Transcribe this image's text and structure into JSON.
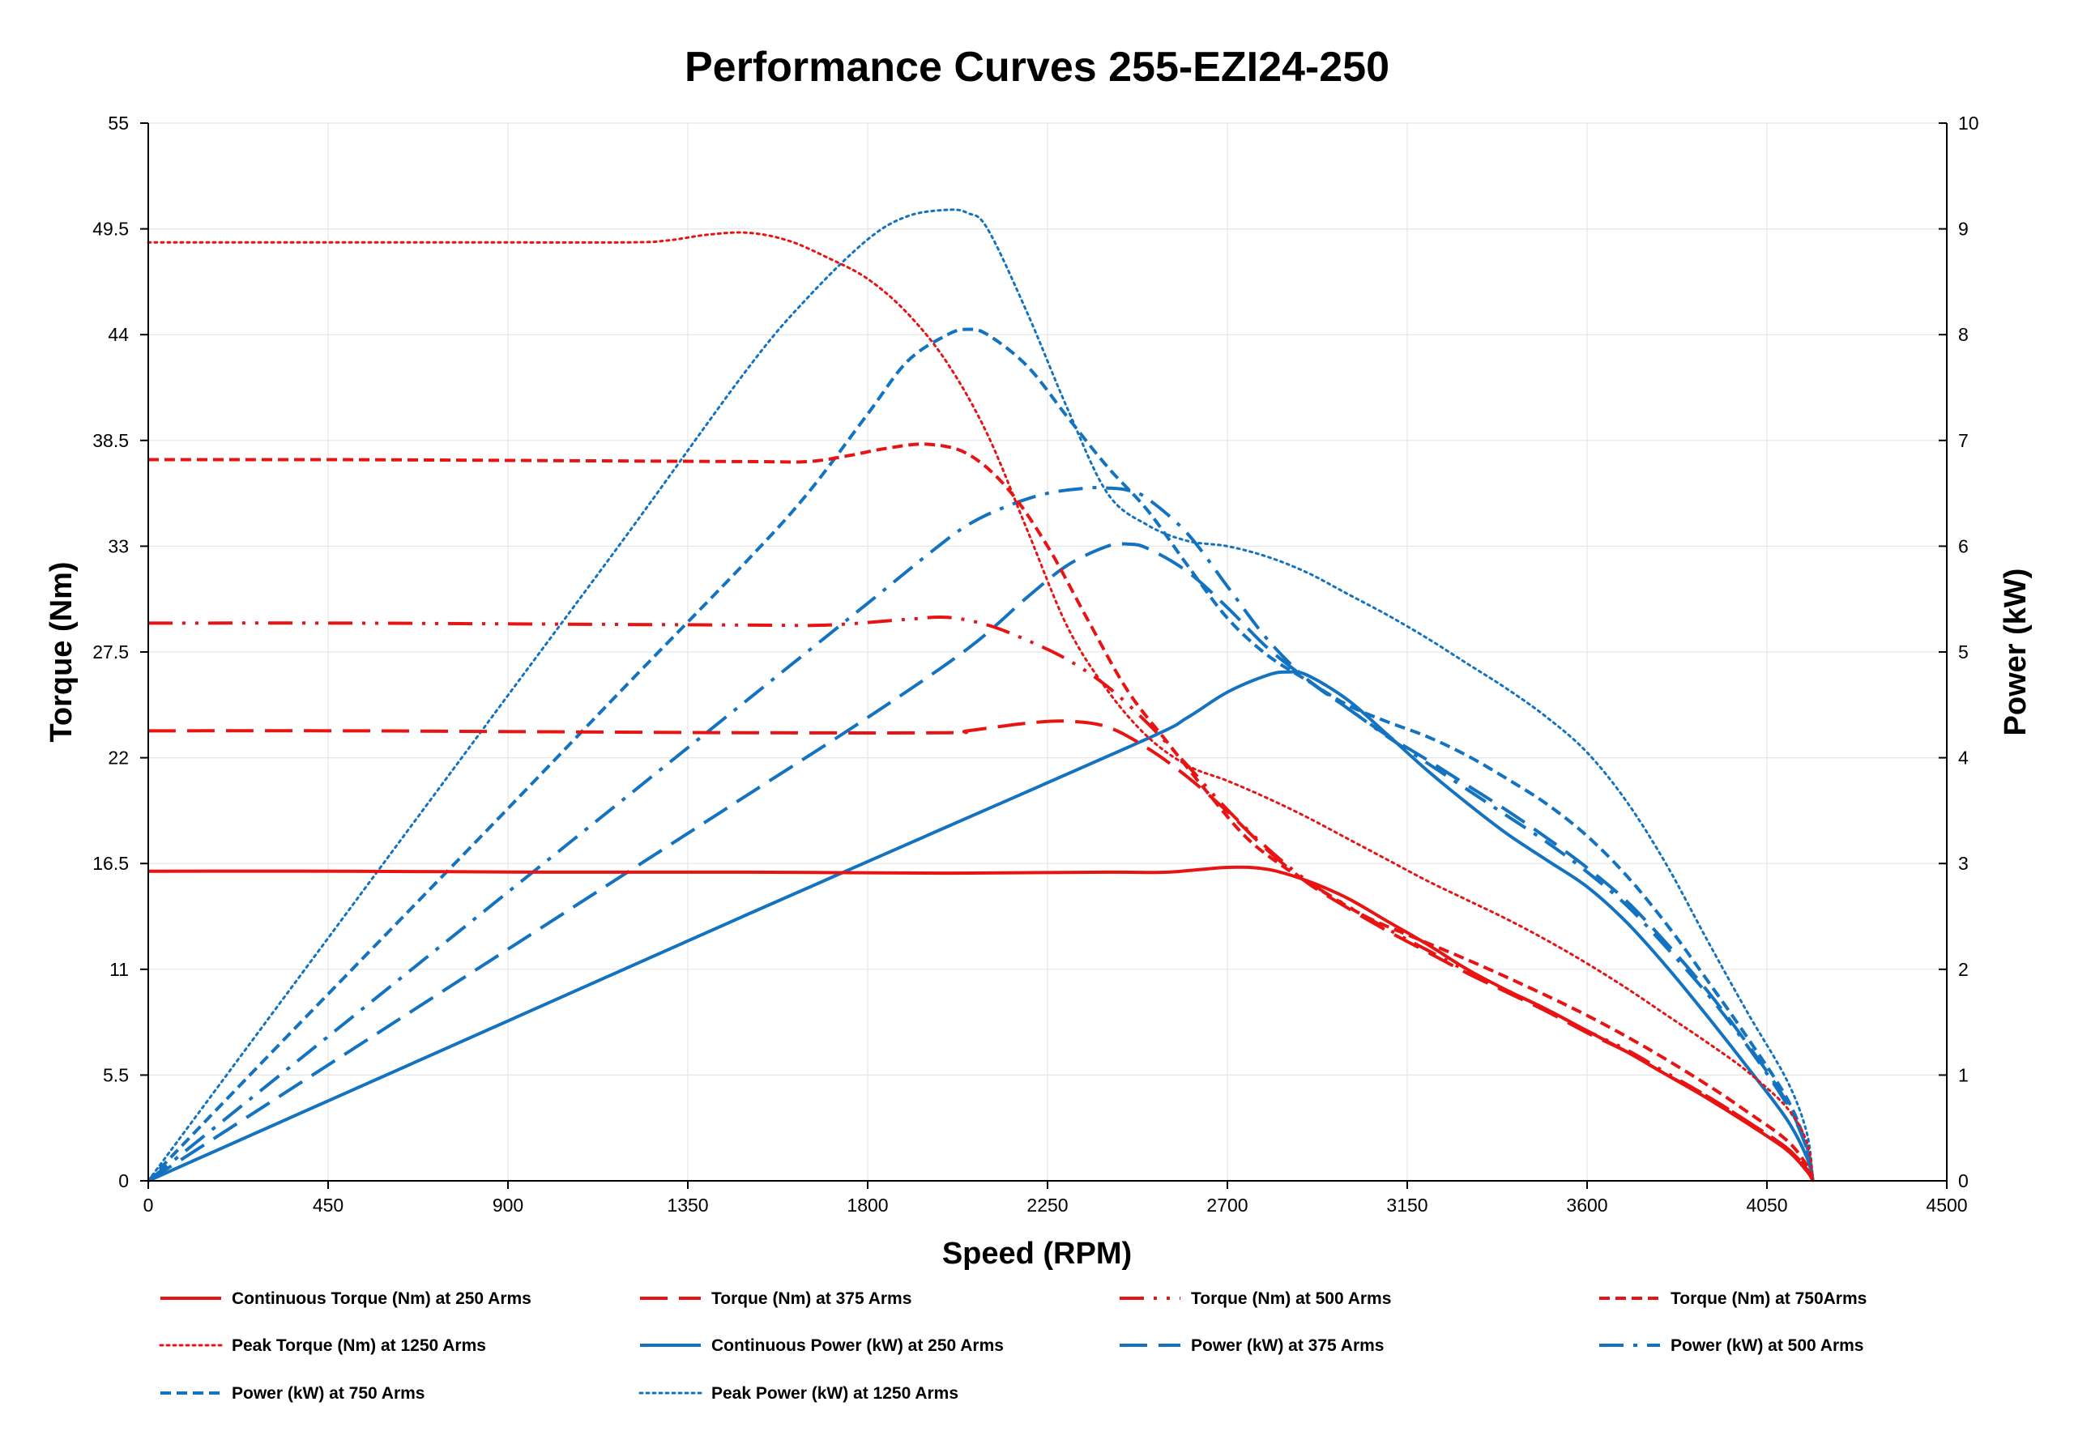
{
  "chart_data": {
    "type": "line",
    "title": "Performance Curves 255-EZI24-250",
    "xlabel": "Speed (RPM)",
    "ylabel": "Torque (Nm)",
    "y2label": "Power (kW)",
    "xlim": [
      0,
      4500
    ],
    "ylim": [
      0,
      55
    ],
    "y2lim": [
      0,
      10
    ],
    "x_ticks": [
      0,
      450,
      900,
      1350,
      1800,
      2250,
      2700,
      3150,
      3600,
      4050,
      4500
    ],
    "y_ticks": [
      0,
      5.5,
      11,
      16.5,
      22,
      27.5,
      33,
      38.5,
      44,
      49.5,
      55
    ],
    "y2_ticks": [
      0,
      1,
      2,
      3,
      4,
      5,
      6,
      7,
      8,
      9,
      10
    ],
    "grid": true,
    "legend_position": "bottom",
    "colors": {
      "torque": "#e81414",
      "power": "#1473c0"
    },
    "series": [
      {
        "name": "Continuous Torque (Nm) at 250 Arms",
        "axis": "left",
        "color": "#e81414",
        "style": "solid",
        "x": [
          0,
          500,
          1000,
          1500,
          2000,
          2400,
          2550,
          2700,
          2800,
          2900,
          3000,
          3100,
          3200,
          3300,
          3400,
          3500,
          3600,
          3700,
          3800,
          3900,
          4000,
          4100,
          4150,
          4165
        ],
        "y": [
          16.1,
          16.1,
          16.05,
          16.05,
          16.0,
          16.05,
          16.05,
          16.3,
          16.2,
          15.6,
          14.7,
          13.5,
          12.3,
          11.0,
          9.9,
          8.9,
          7.8,
          6.7,
          5.5,
          4.3,
          3.0,
          1.6,
          0.5,
          0
        ]
      },
      {
        "name": "Torque (Nm) at 375 Arms",
        "axis": "left",
        "color": "#e81414",
        "style": "longdash",
        "x": [
          0,
          500,
          1000,
          1500,
          2000,
          2050,
          2200,
          2300,
          2400,
          2500,
          2600,
          2700,
          2800,
          2900,
          3000,
          3100,
          3200,
          3300,
          3400,
          3500,
          3600,
          3700,
          3800,
          3900,
          4000,
          4100,
          4150,
          4165
        ],
        "y": [
          23.4,
          23.4,
          23.35,
          23.3,
          23.3,
          23.4,
          23.8,
          23.9,
          23.6,
          22.5,
          21.0,
          19.2,
          17.2,
          15.5,
          14.2,
          13.0,
          11.9,
          10.8,
          9.8,
          8.8,
          7.7,
          6.7,
          5.5,
          4.4,
          3.1,
          1.7,
          0.6,
          0
        ]
      },
      {
        "name": "Torque (Nm) at 500 Arms",
        "axis": "left",
        "color": "#e81414",
        "style": "dashdotdot",
        "x": [
          0,
          500,
          1000,
          1500,
          1700,
          1900,
          2000,
          2100,
          2200,
          2300,
          2400,
          2500,
          2600,
          2700,
          2800,
          2900,
          3000,
          3100,
          3200,
          3300,
          3400,
          3500,
          3600,
          3700,
          3800,
          3900,
          4000,
          4100,
          4150,
          4165
        ],
        "y": [
          29.0,
          29.0,
          28.95,
          28.9,
          28.9,
          29.2,
          29.3,
          28.9,
          28.1,
          27.1,
          25.7,
          23.8,
          21.6,
          19.3,
          17.3,
          15.6,
          14.3,
          13.1,
          12.0,
          10.9,
          9.9,
          8.9,
          7.8,
          6.8,
          5.6,
          4.4,
          3.1,
          1.7,
          0.6,
          0
        ]
      },
      {
        "name": "Torque (Nm) at 750Arms",
        "axis": "left",
        "color": "#e81414",
        "style": "shortdash",
        "x": [
          0,
          500,
          1000,
          1500,
          1650,
          1750,
          1850,
          1950,
          2050,
          2150,
          2250,
          2350,
          2450,
          2550,
          2650,
          2750,
          2850,
          2950,
          3050,
          3150,
          3300,
          3450,
          3600,
          3750,
          3900,
          4000,
          4100,
          4150,
          4165
        ],
        "y": [
          37.5,
          37.5,
          37.45,
          37.4,
          37.4,
          37.7,
          38.1,
          38.3,
          37.8,
          36.0,
          33.0,
          29.2,
          25.5,
          22.8,
          20.2,
          17.8,
          16.2,
          14.9,
          13.7,
          12.8,
          11.5,
          10.1,
          8.6,
          6.9,
          5.0,
          3.6,
          2.1,
          0.8,
          0
        ]
      },
      {
        "name": "Peak Torque (Nm) at 1250  Arms",
        "axis": "left",
        "color": "#e81414",
        "style": "dotted",
        "x": [
          0,
          400,
          800,
          1200,
          1300,
          1400,
          1500,
          1600,
          1700,
          1800,
          1900,
          2000,
          2100,
          2200,
          2300,
          2400,
          2500,
          2600,
          2700,
          2800,
          2900,
          3000,
          3100,
          3200,
          3300,
          3400,
          3500,
          3600,
          3700,
          3800,
          3900,
          4000,
          4100,
          4150,
          4165
        ],
        "y": [
          48.8,
          48.8,
          48.8,
          48.8,
          48.9,
          49.2,
          49.3,
          48.9,
          48.0,
          46.9,
          45.1,
          42.5,
          38.8,
          33.8,
          28.8,
          25.5,
          23.1,
          21.6,
          20.8,
          19.9,
          18.9,
          17.8,
          16.7,
          15.6,
          14.6,
          13.6,
          12.5,
          11.3,
          10.0,
          8.6,
          7.2,
          5.7,
          3.8,
          2.0,
          0
        ]
      },
      {
        "name": "Continuous Power (kW) at 250 Arms",
        "axis": "right",
        "color": "#1473c0",
        "style": "solid",
        "x": [
          0,
          500,
          1000,
          1500,
          2000,
          2500,
          2600,
          2700,
          2800,
          2850,
          2900,
          3000,
          3100,
          3200,
          3300,
          3400,
          3500,
          3600,
          3700,
          3800,
          3900,
          4000,
          4100,
          4150,
          4165
        ],
        "y": [
          0,
          0.84,
          1.68,
          2.52,
          3.35,
          4.18,
          4.38,
          4.62,
          4.78,
          4.81,
          4.78,
          4.55,
          4.22,
          3.88,
          3.57,
          3.28,
          3.03,
          2.78,
          2.44,
          2.02,
          1.56,
          1.08,
          0.58,
          0.22,
          0
        ]
      },
      {
        "name": "Power (kW) at 375 Arms",
        "axis": "right",
        "color": "#1473c0",
        "style": "longdash",
        "x": [
          0,
          300,
          600,
          900,
          1200,
          1500,
          1800,
          2050,
          2200,
          2300,
          2400,
          2450,
          2500,
          2600,
          2700,
          2800,
          2900,
          3000,
          3100,
          3200,
          3300,
          3400,
          3500,
          3600,
          3700,
          3800,
          3900,
          4000,
          4100,
          4150,
          4165
        ],
        "y": [
          0,
          0.73,
          1.46,
          2.19,
          2.92,
          3.65,
          4.38,
          5.03,
          5.52,
          5.82,
          6.0,
          6.02,
          5.98,
          5.76,
          5.42,
          5.04,
          4.74,
          4.47,
          4.21,
          3.98,
          3.74,
          3.5,
          3.24,
          2.96,
          2.64,
          2.24,
          1.8,
          1.3,
          0.74,
          0.3,
          0
        ]
      },
      {
        "name": "Power (kW) at 500 Arms",
        "axis": "right",
        "color": "#1473c0",
        "style": "dashdot",
        "x": [
          0,
          300,
          600,
          900,
          1200,
          1500,
          1800,
          1950,
          2050,
          2150,
          2250,
          2350,
          2400,
          2450,
          2500,
          2600,
          2700,
          2800,
          2900,
          3000,
          3100,
          3200,
          3300,
          3400,
          3500,
          3600,
          3700,
          3800,
          3900,
          4000,
          4100,
          4150,
          4165
        ],
        "y": [
          0,
          0.91,
          1.82,
          2.73,
          3.64,
          4.55,
          5.46,
          5.92,
          6.2,
          6.38,
          6.5,
          6.55,
          6.55,
          6.53,
          6.45,
          6.12,
          5.62,
          5.12,
          4.74,
          4.47,
          4.2,
          3.95,
          3.7,
          3.45,
          3.2,
          2.92,
          2.6,
          2.2,
          1.77,
          1.28,
          0.72,
          0.3,
          0
        ]
      },
      {
        "name": "Power (kW) at 750 Arms",
        "axis": "right",
        "color": "#1473c0",
        "style": "shortdash",
        "x": [
          0,
          300,
          600,
          900,
          1200,
          1500,
          1650,
          1800,
          1900,
          2000,
          2050,
          2100,
          2200,
          2300,
          2400,
          2500,
          2600,
          2700,
          2800,
          2900,
          3000,
          3100,
          3200,
          3300,
          3400,
          3500,
          3600,
          3700,
          3800,
          3900,
          4000,
          4100,
          4150,
          4165
        ],
        "y": [
          0,
          1.18,
          2.35,
          3.52,
          4.7,
          5.87,
          6.5,
          7.25,
          7.75,
          8.0,
          8.05,
          8.0,
          7.7,
          7.22,
          6.75,
          6.34,
          5.82,
          5.32,
          4.97,
          4.73,
          4.5,
          4.34,
          4.2,
          4.02,
          3.8,
          3.56,
          3.26,
          2.88,
          2.42,
          1.9,
          1.36,
          0.78,
          0.32,
          0
        ]
      },
      {
        "name": "Peak Power (kW) at 1250 Arms",
        "axis": "right",
        "color": "#1473c0",
        "style": "dotted",
        "x": [
          0,
          300,
          600,
          900,
          1200,
          1500,
          1650,
          1800,
          1900,
          2000,
          2050,
          2100,
          2200,
          2300,
          2400,
          2500,
          2600,
          2700,
          2800,
          2900,
          3000,
          3100,
          3200,
          3300,
          3400,
          3500,
          3600,
          3700,
          3800,
          3900,
          4000,
          4100,
          4150,
          4165
        ],
        "y": [
          0,
          1.53,
          3.06,
          4.59,
          6.12,
          7.68,
          8.35,
          8.9,
          9.12,
          9.18,
          9.15,
          9.0,
          8.2,
          7.3,
          6.5,
          6.2,
          6.05,
          6.0,
          5.9,
          5.75,
          5.55,
          5.35,
          5.13,
          4.89,
          4.65,
          4.38,
          4.05,
          3.58,
          2.98,
          2.28,
          1.6,
          0.95,
          0.45,
          0
        ]
      }
    ]
  }
}
